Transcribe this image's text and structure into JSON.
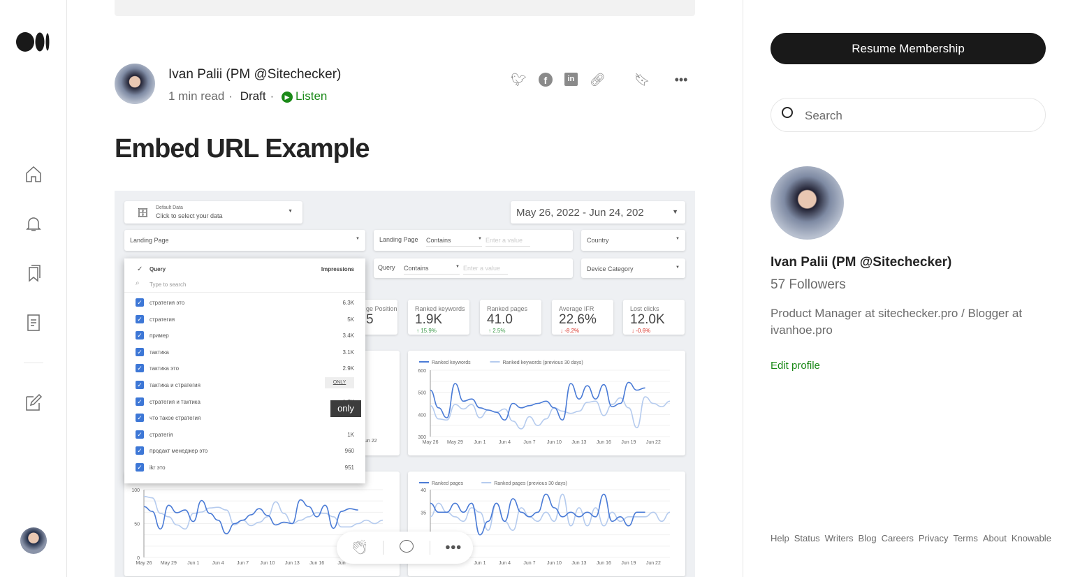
{
  "nav": {
    "logo": "medium-logo",
    "icons": [
      "home-icon",
      "bell-icon",
      "bookmarks-icon",
      "stories-icon",
      "write-icon"
    ]
  },
  "article": {
    "author": "Ivan Palii (PM @Sitechecker)",
    "read_time": "1 min read",
    "status": "Draft",
    "listen": "Listen",
    "title": "Embed URL Example",
    "share_icons": [
      "twitter-icon",
      "facebook-icon",
      "linkedin-icon",
      "link-icon",
      "bookmark-add-icon",
      "more-icon"
    ]
  },
  "dashboard": {
    "data_source": {
      "label": "Default Data",
      "value": "Click to select your data"
    },
    "date_range": "May 26, 2022 - Jun 24, 202",
    "filters": {
      "landing_page": "Landing Page",
      "landing_filter_label": "Landing Page",
      "contains": "Contains",
      "enter_value": "Enter a value",
      "query_label": "Query",
      "country": "Country",
      "device": "Device Category"
    },
    "dropdown": {
      "header": "Query",
      "metric": "Impressions",
      "search_placeholder": "Type to search",
      "only_button": "ONLY",
      "tooltip": "only",
      "items": [
        {
          "q": "стратегия это",
          "v": "6.3K"
        },
        {
          "q": "стратегия",
          "v": "5K"
        },
        {
          "q": "пример",
          "v": "3.4K"
        },
        {
          "q": "тактика",
          "v": "3.1K"
        },
        {
          "q": "тактика это",
          "v": "2.9K"
        },
        {
          "q": "тактика и стратегия",
          "v": ""
        },
        {
          "q": "стратегия и тактика",
          "v": "1.7K"
        },
        {
          "q": "что такое стратегия",
          "v": ""
        },
        {
          "q": "стратегія",
          "v": "1K"
        },
        {
          "q": "продакт менеджер это",
          "v": "960"
        },
        {
          "q": "ikr это",
          "v": "951"
        }
      ]
    },
    "kpis": [
      {
        "label": "ge Position",
        "value": "5",
        "change": ""
      },
      {
        "label": "Ranked keywords",
        "value": "1.9K",
        "change": "↑ 15.9%",
        "dir": "up"
      },
      {
        "label": "Ranked pages",
        "value": "41.0",
        "change": "↑ 2.5%",
        "dir": "up"
      },
      {
        "label": "Average IFR",
        "value": "22.6%",
        "change": "↓ -8.2%",
        "dir": "down"
      },
      {
        "label": "Lost clicks",
        "value": "12.0K",
        "change": "↓ -0.6%",
        "dir": "down"
      }
    ],
    "partial_axis_label": "un 22",
    "colors": {
      "current": "#4a7bd6",
      "previous": "#b5cbee",
      "up": "#3c9a4a",
      "down": "#d93025"
    }
  },
  "chart_data": [
    {
      "type": "line",
      "ylim": [
        300,
        600
      ],
      "yticks": [
        300,
        400,
        500,
        600
      ],
      "xticks": [
        "May 26",
        "May 29",
        "Jun 1",
        "Jun 4",
        "Jun 7",
        "Jun 10",
        "Jun 13",
        "Jun 16",
        "Jun 19",
        "Jun 22"
      ],
      "grid": true,
      "legend": "top-left",
      "series": [
        {
          "name": "Ranked keywords",
          "values": [
            510,
            430,
            385,
            540,
            460,
            470,
            430,
            420,
            410,
            375,
            450,
            430,
            440,
            450,
            460,
            430,
            375,
            540,
            470,
            530,
            470,
            535,
            435,
            450,
            545,
            510,
            520
          ]
        },
        {
          "name": "Ranked keywords (previous 30 days)",
          "values": [
            440,
            380,
            375,
            445,
            425,
            445,
            385,
            420,
            410,
            425,
            370,
            335,
            390,
            350,
            380,
            430,
            415,
            405,
            415,
            455,
            460,
            395,
            445,
            475,
            430,
            340,
            480,
            450,
            435,
            460
          ]
        }
      ]
    },
    {
      "type": "line",
      "ylim": [
        25,
        40
      ],
      "yticks": [
        35,
        40
      ],
      "xticks": [
        "Jun 1",
        "Jun 4",
        "Jun 7",
        "Jun 10",
        "Jun 13",
        "Jun 16",
        "Jun 19",
        "Jun 22"
      ],
      "grid": true,
      "legend": "top-left",
      "series": [
        {
          "name": "Ranked pages",
          "values": [
            37,
            35,
            35,
            37,
            35,
            37,
            30,
            33,
            37,
            33,
            38,
            35,
            34,
            35,
            39,
            36,
            34,
            35,
            34,
            35,
            34,
            39,
            33,
            34,
            32,
            35,
            35
          ]
        },
        {
          "name": "Ranked pages (previous 30 days)",
          "values": [
            34,
            37,
            35,
            34,
            33,
            36,
            35,
            31,
            37,
            33,
            31,
            36,
            34,
            33,
            35,
            33,
            39,
            32,
            36,
            32,
            36,
            32,
            35,
            33,
            34,
            34,
            34,
            35,
            33,
            35
          ]
        }
      ]
    },
    {
      "type": "line",
      "ylim": [
        0,
        100
      ],
      "yticks": [
        0,
        50,
        100
      ],
      "xticks": [
        "May 26",
        "May 29",
        "Jun 1",
        "Jun 4",
        "Jun 7",
        "Jun 10",
        "Jun 13",
        "Jun 16",
        "Jun"
      ],
      "grid": true,
      "legend": "top-left",
      "series": [
        {
          "values": [
            75,
            68,
            42,
            77,
            66,
            70,
            53,
            84,
            65,
            55,
            35,
            50,
            55,
            63,
            72,
            62,
            48,
            52,
            50,
            85,
            75,
            60,
            77,
            43,
            68,
            72,
            70
          ]
        },
        {
          "values": [
            90,
            88,
            65,
            60,
            48,
            42,
            65,
            67,
            73,
            74,
            70,
            48,
            55,
            47,
            52,
            60,
            82,
            65,
            50,
            55,
            60,
            66,
            65,
            60,
            45,
            45,
            50,
            55,
            50,
            55
          ]
        }
      ]
    }
  ],
  "sidebar": {
    "resume": "Resume Membership",
    "search_placeholder": "Search",
    "name": "Ivan Palii (PM @Sitechecker)",
    "followers": "57 Followers",
    "bio_prefix": "Product Manager at ",
    "bio_link1": "sitechecker.pro",
    "bio_mid": " / Blogger at ",
    "bio_link2": "ivanhoe.pro",
    "edit": "Edit profile",
    "footer": [
      "Help",
      "Status",
      "Writers",
      "Blog",
      "Careers",
      "Privacy",
      "Terms",
      "About",
      "Knowable"
    ]
  },
  "floating_bar": {
    "icons": [
      "clap-icon",
      "comment-icon",
      "more-icon"
    ]
  }
}
